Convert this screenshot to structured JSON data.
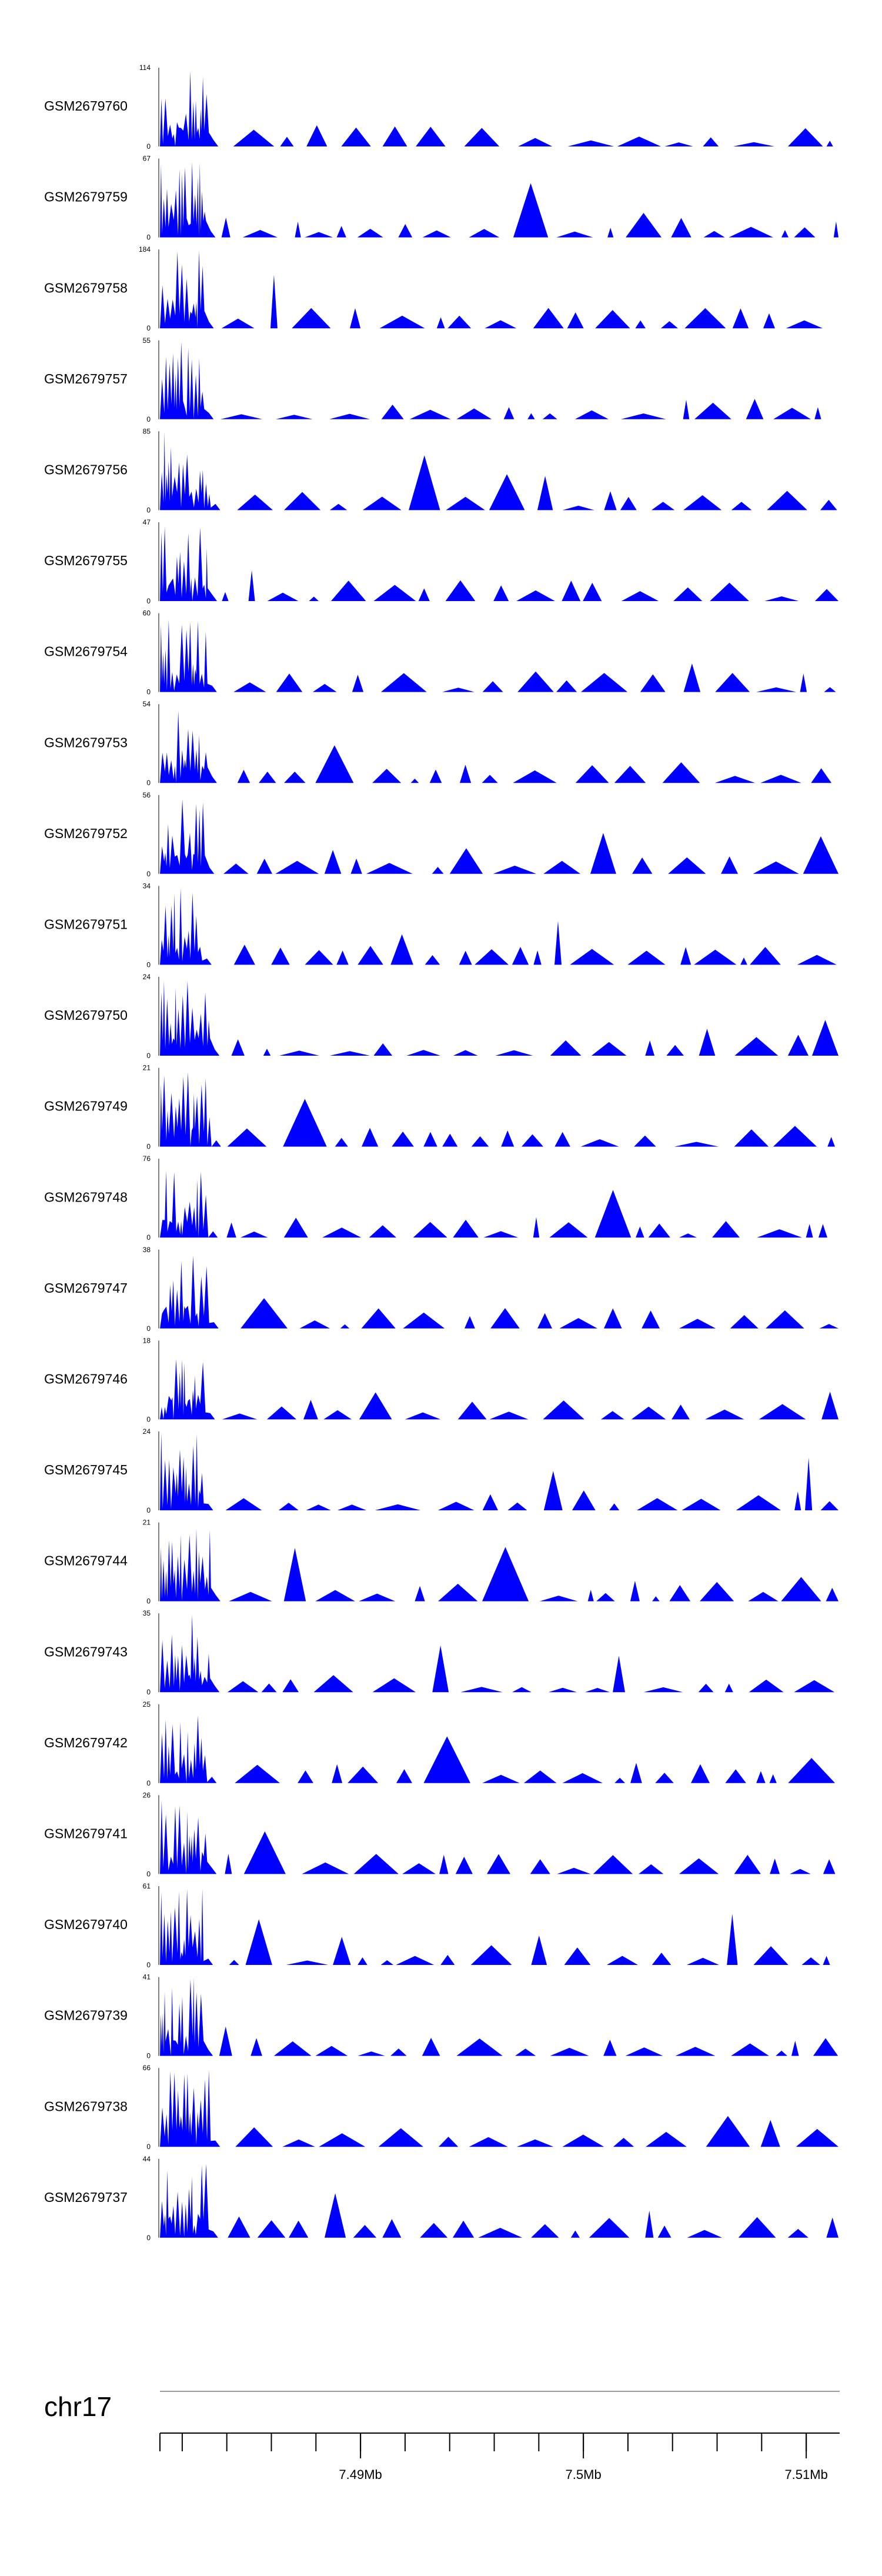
{
  "chart_data": {
    "type": "area",
    "fill_color": "#0000ff",
    "axis_color": "#000000",
    "chromosome": "chr17",
    "x_range_mb": [
      7.481,
      7.5115
    ],
    "x_ticks": [
      {
        "value": 7.49,
        "label": "7.49Mb"
      },
      {
        "value": 7.5,
        "label": "7.5Mb"
      },
      {
        "value": 7.51,
        "label": "7.51Mb"
      }
    ],
    "minor_tick_step_mb": 0.002,
    "tracks": [
      {
        "name": "GSM2679760",
        "ymax": "114",
        "ymin": "0",
        "seed": 1
      },
      {
        "name": "GSM2679759",
        "ymax": "67",
        "ymin": "0",
        "seed": 2
      },
      {
        "name": "GSM2679758",
        "ymax": "184",
        "ymin": "0",
        "seed": 3
      },
      {
        "name": "GSM2679757",
        "ymax": "55",
        "ymin": "0",
        "seed": 4
      },
      {
        "name": "GSM2679756",
        "ymax": "85",
        "ymin": "0",
        "seed": 5
      },
      {
        "name": "GSM2679755",
        "ymax": "47",
        "ymin": "0",
        "seed": 6
      },
      {
        "name": "GSM2679754",
        "ymax": "60",
        "ymin": "0",
        "seed": 7
      },
      {
        "name": "GSM2679753",
        "ymax": "54",
        "ymin": "0",
        "seed": 8
      },
      {
        "name": "GSM2679752",
        "ymax": "56",
        "ymin": "0",
        "seed": 9
      },
      {
        "name": "GSM2679751",
        "ymax": "34",
        "ymin": "0",
        "seed": 10
      },
      {
        "name": "GSM2679750",
        "ymax": "24",
        "ymin": "0",
        "seed": 11
      },
      {
        "name": "GSM2679749",
        "ymax": "21",
        "ymin": "0",
        "seed": 12
      },
      {
        "name": "GSM2679748",
        "ymax": "76",
        "ymin": "0",
        "seed": 13
      },
      {
        "name": "GSM2679747",
        "ymax": "38",
        "ymin": "0",
        "seed": 14
      },
      {
        "name": "GSM2679746",
        "ymax": "18",
        "ymin": "0",
        "seed": 15
      },
      {
        "name": "GSM2679745",
        "ymax": "24",
        "ymin": "0",
        "seed": 16
      },
      {
        "name": "GSM2679744",
        "ymax": "21",
        "ymin": "0",
        "seed": 17
      },
      {
        "name": "GSM2679743",
        "ymax": "35",
        "ymin": "0",
        "seed": 18
      },
      {
        "name": "GSM2679742",
        "ymax": "25",
        "ymin": "0",
        "seed": 19
      },
      {
        "name": "GSM2679741",
        "ymax": "26",
        "ymin": "0",
        "seed": 20
      },
      {
        "name": "GSM2679740",
        "ymax": "61",
        "ymin": "0",
        "seed": 21
      },
      {
        "name": "GSM2679739",
        "ymax": "41",
        "ymin": "0",
        "seed": 22
      },
      {
        "name": "GSM2679738",
        "ymax": "66",
        "ymin": "0",
        "seed": 23
      },
      {
        "name": "GSM2679737",
        "ymax": "44",
        "ymin": "0",
        "seed": 24
      }
    ]
  }
}
